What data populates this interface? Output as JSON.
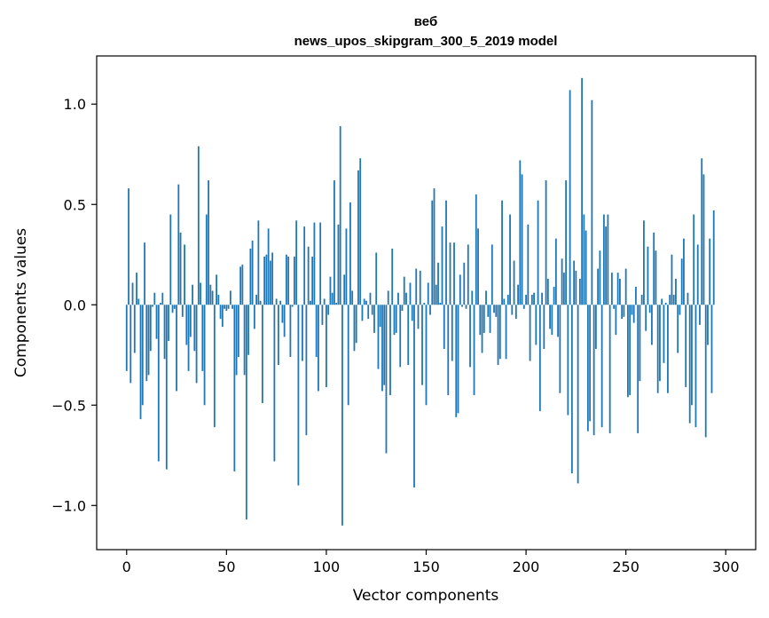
{
  "chart_data": {
    "type": "bar",
    "title": "веб",
    "subtitle": "news_upos_skipgram_300_5_2019 model",
    "xlabel": "Vector components",
    "ylabel": "Components values",
    "xlim": [
      -15,
      315
    ],
    "ylim": [
      -1.22,
      1.24
    ],
    "xticks": [
      0,
      50,
      100,
      150,
      200,
      250,
      300
    ],
    "yticks": [
      -1.0,
      -0.5,
      0.0,
      0.5,
      1.0
    ],
    "ytick_labels": [
      "−1.0",
      "−0.5",
      "0.0",
      "0.5",
      "1.0"
    ],
    "bar_color": "#1f77b4",
    "grid": false,
    "values": [
      -0.33,
      0.58,
      -0.39,
      0.11,
      -0.24,
      0.16,
      0.03,
      -0.57,
      -0.5,
      0.31,
      -0.38,
      -0.35,
      -0.23,
      -0.01,
      0.06,
      -0.17,
      -0.78,
      0.01,
      0.06,
      -0.27,
      -0.82,
      -0.18,
      0.45,
      -0.04,
      -0.02,
      -0.43,
      0.6,
      0.36,
      -0.06,
      0.3,
      -0.2,
      -0.33,
      -0.16,
      0.1,
      -0.23,
      -0.39,
      0.79,
      0.11,
      -0.33,
      -0.5,
      0.45,
      0.62,
      0.1,
      0.07,
      -0.61,
      0.15,
      0.05,
      -0.07,
      -0.11,
      -0.02,
      -0.03,
      -0.02,
      0.07,
      -0.02,
      -0.83,
      -0.35,
      -0.26,
      0.19,
      0.2,
      -0.35,
      -1.07,
      -0.25,
      0.28,
      0.32,
      -0.12,
      0.05,
      0.42,
      0.02,
      -0.49,
      0.24,
      0.25,
      0.38,
      0.22,
      0.26,
      -0.78,
      0.03,
      -0.3,
      0.02,
      -0.09,
      -0.16,
      0.25,
      0.24,
      -0.26,
      -0.01,
      0.24,
      0.42,
      -0.9,
      0.0,
      -0.28,
      0.39,
      -0.65,
      0.29,
      0.02,
      0.24,
      0.41,
      -0.26,
      -0.43,
      0.41,
      -0.1,
      0.03,
      -0.41,
      -0.05,
      0.14,
      0.06,
      0.62,
      0.01,
      0.4,
      0.89,
      -1.1,
      0.15,
      0.38,
      -0.5,
      0.51,
      0.07,
      -0.23,
      -0.19,
      0.67,
      0.73,
      -0.08,
      0.03,
      0.02,
      -0.07,
      0.06,
      -0.05,
      -0.14,
      0.26,
      -0.32,
      -0.11,
      -0.43,
      -0.4,
      -0.74,
      0.07,
      -0.45,
      0.28,
      -0.15,
      -0.14,
      0.06,
      -0.31,
      -0.03,
      0.14,
      0.06,
      -0.3,
      0.11,
      -0.08,
      -0.91,
      0.18,
      -0.12,
      0.17,
      -0.4,
      0.01,
      -0.5,
      0.11,
      -0.05,
      0.52,
      0.58,
      0.1,
      0.21,
      0.01,
      0.39,
      -0.22,
      0.52,
      -0.45,
      0.31,
      -0.28,
      0.31,
      -0.56,
      -0.54,
      0.15,
      -0.01,
      0.21,
      -0.02,
      0.3,
      -0.31,
      0.07,
      -0.45,
      0.55,
      0.38,
      -0.15,
      -0.24,
      -0.14,
      0.07,
      -0.06,
      -0.14,
      0.3,
      -0.04,
      -0.06,
      -0.3,
      -0.27,
      0.52,
      0.03,
      -0.27,
      0.05,
      0.45,
      -0.05,
      0.22,
      -0.07,
      0.1,
      0.72,
      0.65,
      -0.02,
      0.05,
      0.4,
      -0.28,
      0.05,
      0.06,
      -0.2,
      0.52,
      -0.53,
      0.06,
      -0.22,
      0.62,
      0.13,
      -0.12,
      -0.15,
      0.09,
      0.33,
      -0.16,
      -0.44,
      0.23,
      0.16,
      0.62,
      -0.55,
      1.07,
      -0.84,
      0.22,
      0.17,
      -0.89,
      0.13,
      1.13,
      0.45,
      0.37,
      -0.63,
      -0.58,
      1.02,
      -0.65,
      -0.22,
      0.18,
      0.27,
      -0.61,
      0.45,
      0.39,
      0.45,
      -0.64,
      0.16,
      -0.02,
      -0.15,
      0.16,
      0.13,
      -0.07,
      -0.06,
      0.18,
      -0.46,
      -0.45,
      -0.05,
      -0.09,
      0.09,
      -0.64,
      -0.38,
      0.05,
      0.42,
      -0.13,
      0.29,
      -0.04,
      -0.2,
      0.36,
      0.27,
      -0.44,
      -0.38,
      0.03,
      -0.29,
      0.01,
      -0.44,
      0.05,
      0.25,
      0.05,
      0.13,
      -0.24,
      -0.05,
      0.23,
      0.33,
      -0.41,
      0.06,
      -0.59,
      -0.5,
      0.45,
      -0.61,
      0.3,
      -0.1,
      0.73,
      0.65,
      -0.66,
      -0.2,
      0.33,
      -0.44,
      0.47
    ]
  }
}
